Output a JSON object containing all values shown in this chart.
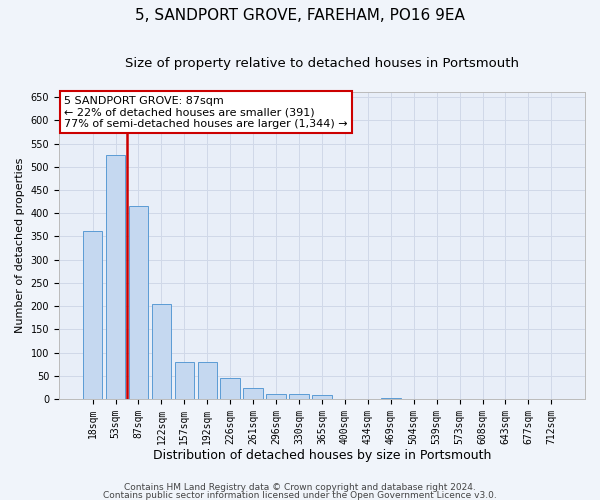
{
  "title": "5, SANDPORT GROVE, FAREHAM, PO16 9EA",
  "subtitle": "Size of property relative to detached houses in Portsmouth",
  "xlabel": "Distribution of detached houses by size in Portsmouth",
  "ylabel": "Number of detached properties",
  "categories": [
    "18sqm",
    "53sqm",
    "87sqm",
    "122sqm",
    "157sqm",
    "192sqm",
    "226sqm",
    "261sqm",
    "296sqm",
    "330sqm",
    "365sqm",
    "400sqm",
    "434sqm",
    "469sqm",
    "504sqm",
    "539sqm",
    "573sqm",
    "608sqm",
    "643sqm",
    "677sqm",
    "712sqm"
  ],
  "values": [
    362,
    525,
    415,
    205,
    80,
    80,
    45,
    23,
    11,
    10,
    8,
    0,
    0,
    2,
    0,
    0,
    0,
    1,
    0,
    0,
    1
  ],
  "bar_color": "#c5d8f0",
  "bar_edge_color": "#5b9bd5",
  "highlight_bar_index": 2,
  "red_line_color": "#cc0000",
  "background_color": "#f0f4fa",
  "plot_bg_color": "#e8eef8",
  "grid_color": "#d0d8e8",
  "annotation_text": "5 SANDPORT GROVE: 87sqm\n← 22% of detached houses are smaller (391)\n77% of semi-detached houses are larger (1,344) →",
  "annotation_box_facecolor": "#ffffff",
  "annotation_box_edgecolor": "#cc0000",
  "ylim": [
    0,
    660
  ],
  "yticks": [
    0,
    50,
    100,
    150,
    200,
    250,
    300,
    350,
    400,
    450,
    500,
    550,
    600,
    650
  ],
  "footer_line1": "Contains HM Land Registry data © Crown copyright and database right 2024.",
  "footer_line2": "Contains public sector information licensed under the Open Government Licence v3.0.",
  "title_fontsize": 11,
  "subtitle_fontsize": 9.5,
  "xlabel_fontsize": 9,
  "ylabel_fontsize": 8,
  "tick_fontsize": 7,
  "annotation_fontsize": 8,
  "footer_fontsize": 6.5
}
